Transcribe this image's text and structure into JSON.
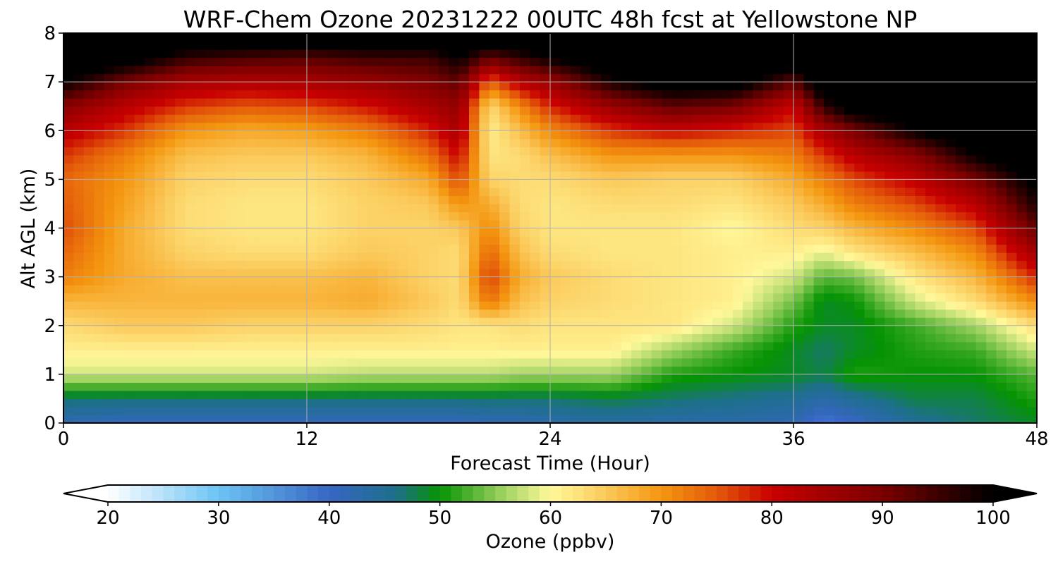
{
  "chart_data": {
    "type": "heatmap",
    "title": "WRF-Chem Ozone  20231222 00UTC 48h fcst at Yellowstone NP",
    "xlabel": "Forecast Time (Hour)",
    "ylabel": "Alt AGL (km)",
    "xlim": [
      0,
      48
    ],
    "ylim": [
      0,
      8
    ],
    "xticks": [
      0,
      12,
      24,
      36,
      48
    ],
    "yticks": [
      0,
      1,
      2,
      3,
      4,
      5,
      6,
      7,
      8
    ],
    "grid": true,
    "x": [
      0,
      3,
      6,
      9,
      12,
      15,
      18,
      19.5,
      21,
      22.5,
      24,
      27,
      30,
      33,
      36,
      37.5,
      39,
      42,
      45,
      48
    ],
    "y": [
      0,
      0.5,
      1,
      1.5,
      2,
      2.5,
      3,
      3.5,
      4,
      4.5,
      5,
      5.5,
      6,
      6.5,
      7,
      7.5,
      8
    ],
    "z": [
      [
        42,
        41,
        41,
        41,
        41,
        41,
        41,
        41,
        42,
        42,
        43,
        44,
        43,
        43,
        42,
        38,
        40,
        45,
        47,
        49
      ],
      [
        47,
        47,
        47,
        47,
        47,
        47,
        47,
        47,
        47,
        47,
        47,
        48,
        47,
        46,
        45,
        43,
        45,
        48,
        48,
        51
      ],
      [
        58,
        58,
        58,
        58,
        58,
        57,
        57,
        57,
        57,
        56,
        56,
        56,
        51,
        50,
        49,
        48,
        51,
        50,
        50,
        53
      ],
      [
        61,
        61,
        61,
        61,
        61,
        61,
        61,
        61,
        61,
        61,
        61,
        61,
        56,
        52,
        49,
        47,
        49,
        51,
        52,
        58
      ],
      [
        63,
        65,
        65,
        64,
        64,
        64,
        63,
        62,
        62,
        63,
        62,
        62,
        62,
        58,
        51,
        49,
        49,
        52,
        56,
        63
      ],
      [
        67,
        67,
        67,
        67,
        67,
        68,
        65,
        63,
        73,
        66,
        64,
        63,
        62,
        61,
        54,
        49,
        50,
        58,
        63,
        71
      ],
      [
        72,
        68,
        66,
        66,
        66,
        67,
        64,
        63,
        77,
        68,
        65,
        63,
        62,
        61,
        58,
        53,
        54,
        62,
        67,
        78
      ],
      [
        74,
        68,
        64,
        63,
        63,
        65,
        64,
        63,
        74,
        66,
        63,
        62,
        62,
        61,
        61,
        59,
        62,
        66,
        71,
        85
      ],
      [
        76,
        68,
        63,
        62,
        62,
        64,
        64,
        65,
        71,
        64,
        62,
        62,
        62,
        60,
        63,
        64,
        67,
        71,
        76,
        92
      ],
      [
        75,
        69,
        63,
        62,
        62,
        64,
        65,
        70,
        68,
        63,
        62,
        63,
        63,
        62,
        65,
        68,
        72,
        76,
        82,
        98
      ],
      [
        74,
        70,
        64,
        63,
        63,
        65,
        68,
        76,
        64,
        63,
        63,
        65,
        64,
        64,
        68,
        72,
        76,
        81,
        90,
        102
      ],
      [
        77,
        72,
        66,
        65,
        65,
        67,
        73,
        80,
        62,
        63,
        66,
        70,
        70,
        70,
        72,
        77,
        82,
        88,
        100,
        106
      ],
      [
        82,
        77,
        70,
        68,
        69,
        72,
        78,
        84,
        61,
        66,
        71,
        77,
        80,
        78,
        76,
        84,
        90,
        100,
        106,
        108
      ],
      [
        88,
        82,
        77,
        75,
        76,
        79,
        84,
        87,
        63,
        71,
        78,
        86,
        92,
        90,
        80,
        96,
        104,
        106,
        108,
        108
      ],
      [
        100,
        90,
        84,
        83,
        84,
        86,
        89,
        92,
        74,
        82,
        86,
        98,
        104,
        104,
        92,
        106,
        108,
        108,
        108,
        108
      ],
      [
        108,
        104,
        96,
        94,
        93,
        95,
        95,
        100,
        92,
        96,
        100,
        106,
        108,
        108,
        106,
        108,
        108,
        108,
        108,
        108
      ],
      [
        108,
        108,
        108,
        108,
        108,
        108,
        108,
        108,
        108,
        108,
        108,
        108,
        108,
        108,
        108,
        108,
        108,
        108,
        108,
        108
      ]
    ],
    "colorbar": {
      "label": "Ozone  (ppbv)",
      "min": 20,
      "max": 100,
      "ticks": [
        20,
        30,
        40,
        50,
        60,
        70,
        80,
        90,
        100
      ],
      "extend": "both",
      "stops": [
        {
          "v": 20,
          "c": "#ffffff"
        },
        {
          "v": 30,
          "c": "#6cc4f3"
        },
        {
          "v": 40,
          "c": "#3766c3"
        },
        {
          "v": 46,
          "c": "#1d6f8b"
        },
        {
          "v": 50,
          "c": "#059303"
        },
        {
          "v": 55,
          "c": "#8ccb55"
        },
        {
          "v": 60,
          "c": "#fff89a"
        },
        {
          "v": 65,
          "c": "#fbc95a"
        },
        {
          "v": 70,
          "c": "#f4960f"
        },
        {
          "v": 75,
          "c": "#e45a0a"
        },
        {
          "v": 80,
          "c": "#c80000"
        },
        {
          "v": 90,
          "c": "#7a0000"
        },
        {
          "v": 100,
          "c": "#000000"
        }
      ]
    }
  }
}
